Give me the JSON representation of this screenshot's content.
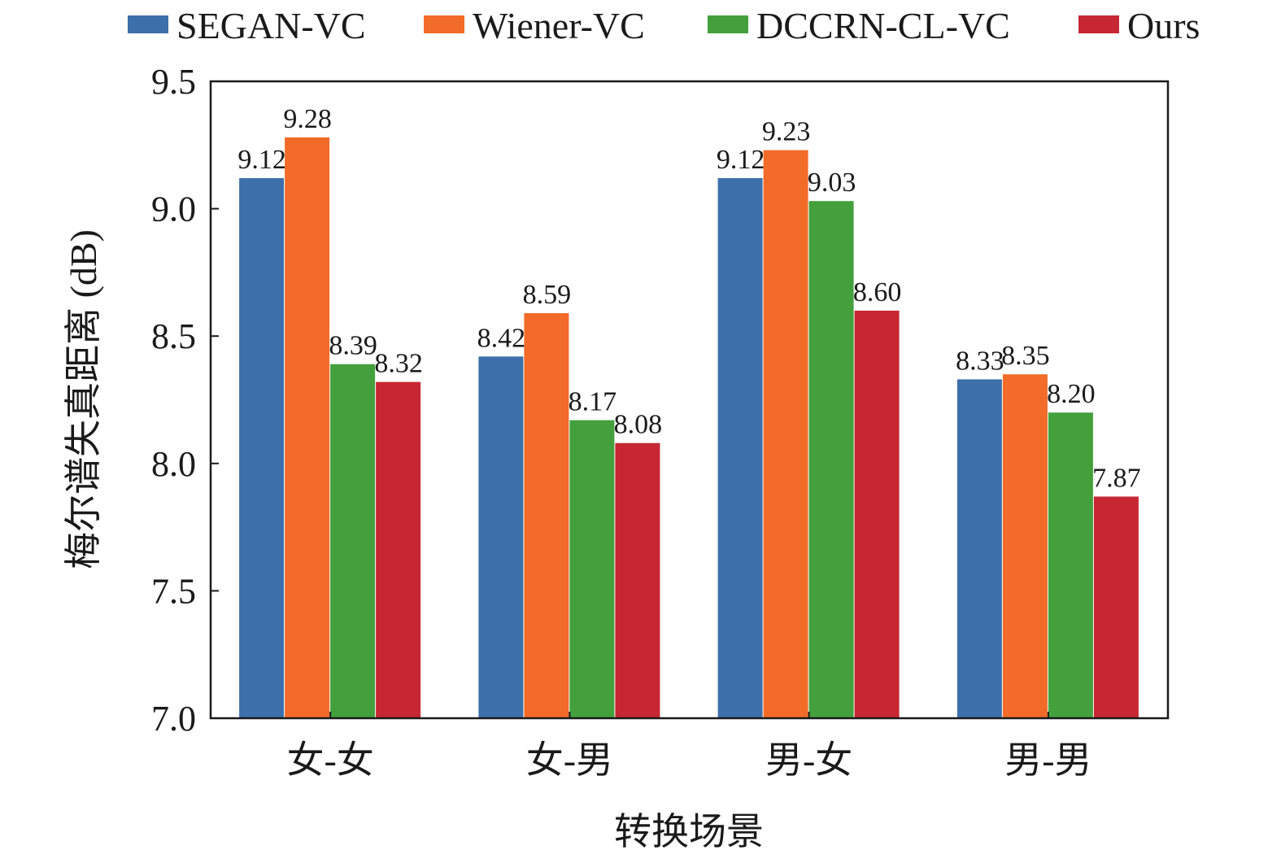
{
  "chart_data": {
    "type": "bar",
    "title": "",
    "xlabel": "转换场景",
    "ylabel": "梅尔谱失真距离 (dB)",
    "ylim": [
      7.0,
      9.5
    ],
    "yticks": [
      "7.0",
      "7.5",
      "8.0",
      "8.5",
      "9.0",
      "9.5"
    ],
    "categories": [
      "女-女",
      "女-男",
      "男-女",
      "男-男"
    ],
    "series": [
      {
        "name": "SEGAN-VC",
        "color": "#3d6faa",
        "values": [
          9.12,
          8.42,
          9.12,
          8.33
        ],
        "labels": [
          "9.12",
          "8.42",
          "9.12",
          "8.33"
        ]
      },
      {
        "name": "Wiener-VC",
        "color": "#f26b29",
        "values": [
          9.28,
          8.59,
          9.23,
          8.35
        ],
        "labels": [
          "9.28",
          "8.59",
          "9.23",
          "8.35"
        ]
      },
      {
        "name": "DCCRN-CL-VC",
        "color": "#43a03c",
        "values": [
          8.39,
          8.17,
          9.03,
          8.2
        ],
        "labels": [
          "8.39",
          "8.17",
          "9.03",
          "8.20"
        ]
      },
      {
        "name": "Ours",
        "color": "#c62733",
        "values": [
          8.32,
          8.08,
          8.6,
          7.87
        ],
        "labels": [
          "8.32",
          "8.08",
          "8.60",
          "7.87"
        ]
      }
    ],
    "grid": false,
    "legend_position": "top"
  }
}
